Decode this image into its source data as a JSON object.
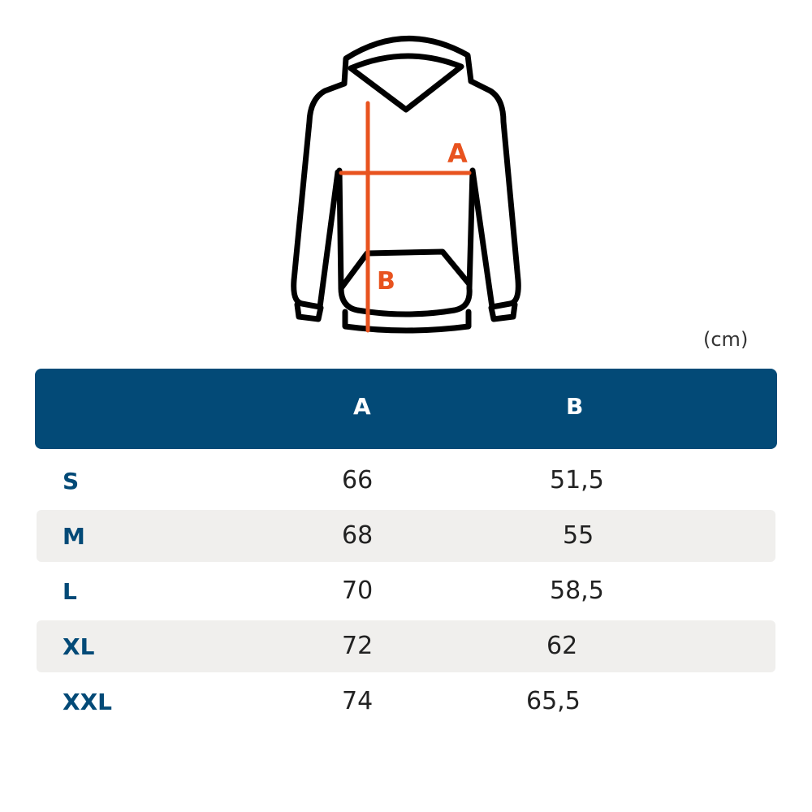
{
  "diagram": {
    "label_a": "A",
    "label_b": "B",
    "outline_color": "#000000",
    "measure_color": "#e8531f"
  },
  "unit": "(cm)",
  "table": {
    "header_color": "#034a77",
    "columns": [
      "",
      "A",
      "B"
    ],
    "rows": [
      {
        "size": "S",
        "a": "66",
        "b": "51,5"
      },
      {
        "size": "M",
        "a": "68",
        "b": "55"
      },
      {
        "size": "L",
        "a": "70",
        "b": "58,5"
      },
      {
        "size": "XL",
        "a": "72",
        "b": "62"
      },
      {
        "size": "XXL",
        "a": "74",
        "b": "65,5"
      }
    ]
  }
}
